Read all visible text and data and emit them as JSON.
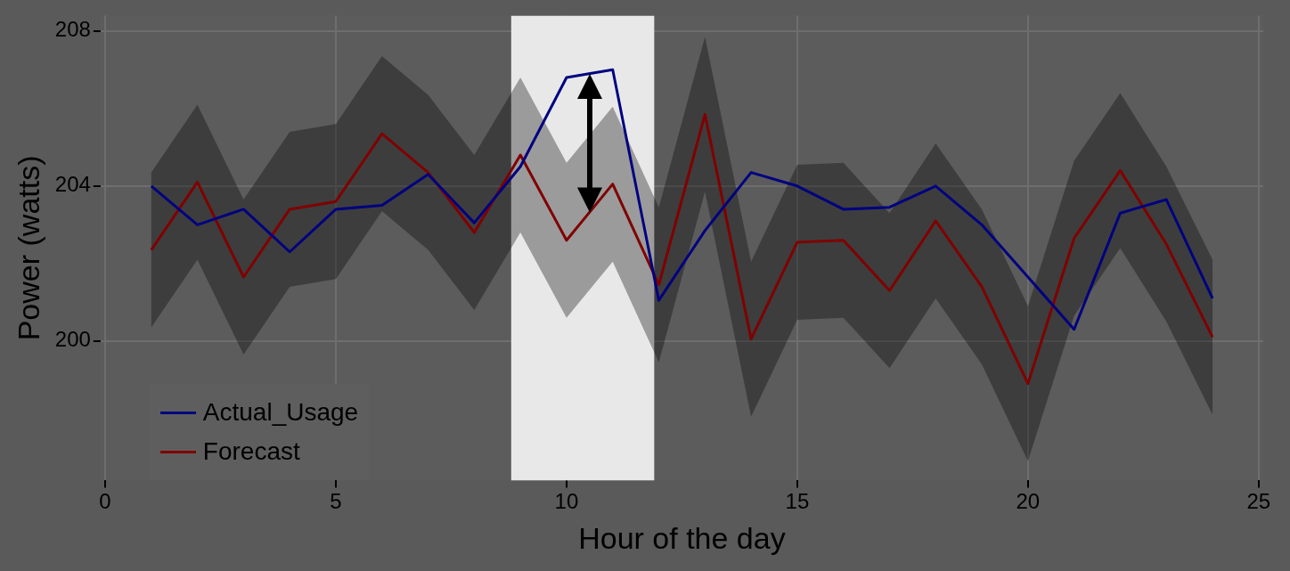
{
  "chart_data": {
    "type": "line",
    "xlabel": "Hour of the day",
    "ylabel": "Power (watts)",
    "x": [
      1,
      2,
      3,
      4,
      5,
      6,
      7,
      8,
      9,
      10,
      11,
      12,
      13,
      14,
      15,
      16,
      17,
      18,
      19,
      20,
      21,
      22,
      23,
      24
    ],
    "series": [
      {
        "name": "Actual_Usage",
        "color": "#000080",
        "values": [
          204.0,
          203.0,
          203.4,
          202.3,
          203.4,
          203.5,
          204.3,
          203.05,
          204.5,
          206.8,
          207.0,
          201.05,
          202.85,
          204.35,
          204.0,
          203.4,
          203.45,
          204.0,
          203.0,
          201.65,
          200.3,
          203.3,
          203.65,
          201.1
        ]
      },
      {
        "name": "Forecast",
        "color": "#800000",
        "values": [
          202.35,
          204.1,
          201.65,
          203.4,
          203.6,
          205.35,
          204.35,
          202.8,
          204.8,
          202.6,
          204.05,
          201.45,
          205.85,
          200.05,
          202.55,
          202.6,
          201.3,
          203.1,
          201.4,
          198.9,
          202.65,
          204.4,
          202.5,
          200.1
        ],
        "lower": [
          200.35,
          202.1,
          199.65,
          201.4,
          201.6,
          203.35,
          202.35,
          200.8,
          202.8,
          200.6,
          202.05,
          199.45,
          203.85,
          198.05,
          200.55,
          200.6,
          199.3,
          201.1,
          199.4,
          196.9,
          200.65,
          202.4,
          200.5,
          198.1
        ],
        "upper": [
          204.35,
          206.1,
          203.65,
          205.4,
          205.6,
          207.35,
          206.35,
          204.8,
          206.8,
          204.6,
          206.05,
          203.45,
          207.85,
          202.05,
          204.55,
          204.6,
          203.3,
          205.1,
          203.4,
          200.9,
          204.65,
          206.4,
          204.5,
          202.1
        ]
      }
    ],
    "bands": [
      {
        "axis": "x",
        "from": 8.8,
        "to": 11.9,
        "color": "#e8e8e8"
      }
    ],
    "xlim": [
      -0.1,
      25.1
    ],
    "xticks": [
      0,
      5,
      10,
      15,
      20,
      25
    ],
    "ylim": [
      196.4,
      208.4
    ],
    "yticks": [
      200,
      204,
      208
    ],
    "grid": true,
    "legend": "bottom left",
    "marker": "none",
    "line_style": "solid"
  }
}
